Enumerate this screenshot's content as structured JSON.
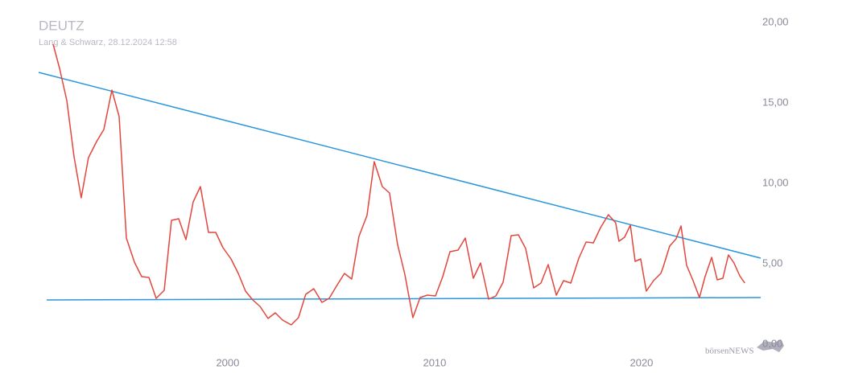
{
  "chart_data": {
    "type": "line",
    "title": "DEUTZ",
    "subtitle": "Lang & Schwarz, 28.12.2024 12:58",
    "watermark": "börsenNEWS",
    "x": [
      1991.56,
      1991.87,
      1992.22,
      1992.57,
      1992.92,
      1993.27,
      1993.66,
      1994.01,
      1994.4,
      1994.75,
      1995.1,
      1995.49,
      1995.84,
      1996.19,
      1996.54,
      1996.93,
      1997.28,
      1997.63,
      1997.98,
      1998.33,
      1998.68,
      1999.07,
      1999.42,
      1999.77,
      2000.16,
      2000.51,
      2000.86,
      2001.21,
      2001.56,
      2001.95,
      2002.3,
      2002.65,
      2003.07,
      2003.42,
      2003.77,
      2004.16,
      2004.55,
      2004.9,
      2005.25,
      2005.64,
      2005.99,
      2006.34,
      2006.73,
      2007.08,
      2007.47,
      2007.82,
      2008.21,
      2008.56,
      2008.95,
      2009.3,
      2009.65,
      2010.04,
      2010.39,
      2010.74,
      2011.13,
      2011.48,
      2011.87,
      2012.22,
      2012.61,
      2012.96,
      2013.31,
      2013.7,
      2014.05,
      2014.4,
      2014.79,
      2015.14,
      2015.49,
      2015.88,
      2016.23,
      2016.58,
      2016.97,
      2017.32,
      2017.67,
      2018.02,
      2018.4,
      2018.75,
      2018.91,
      2019.18,
      2019.46,
      2019.69,
      2019.96,
      2020.23,
      2020.58,
      2020.93,
      2021.05,
      2021.36,
      2021.67,
      2021.91,
      2022.18,
      2022.49,
      2022.8,
      2023.07,
      2023.39,
      2023.66,
      2023.93,
      2024.2,
      2024.47,
      2024.75,
      2024.99
    ],
    "series": [
      {
        "color": "#e2463c",
        "values": [
          18.65,
          17.15,
          15.15,
          11.65,
          9.1,
          11.6,
          12.6,
          13.35,
          15.8,
          14.15,
          6.6,
          5.1,
          4.2,
          4.15,
          2.85,
          3.35,
          7.7,
          7.8,
          6.5,
          8.85,
          9.8,
          6.95,
          6.95,
          6.0,
          5.3,
          4.4,
          3.3,
          2.75,
          2.35,
          1.6,
          1.95,
          1.5,
          1.2,
          1.65,
          3.1,
          3.45,
          2.6,
          2.85,
          3.6,
          4.4,
          4.05,
          6.7,
          8.0,
          11.35,
          9.8,
          9.4,
          6.2,
          4.35,
          1.65,
          2.9,
          3.05,
          3.0,
          4.2,
          5.75,
          5.85,
          6.6,
          4.1,
          5.05,
          2.8,
          3.0,
          3.85,
          6.75,
          6.8,
          5.95,
          3.5,
          3.8,
          4.95,
          3.05,
          3.95,
          3.8,
          5.35,
          6.35,
          6.3,
          7.25,
          8.05,
          7.55,
          6.4,
          6.65,
          7.4,
          5.15,
          5.3,
          3.3,
          3.95,
          4.4,
          4.8,
          6.1,
          6.55,
          7.35,
          4.9,
          3.95,
          2.9,
          4.2,
          5.4,
          4.0,
          4.1,
          5.55,
          5.05,
          4.25,
          3.8
        ]
      }
    ],
    "trendlines": [
      {
        "color": "#2a96dc",
        "x": [
          1990.86,
          2025.76
        ],
        "values": [
          16.9,
          5.35
        ]
      },
      {
        "color": "#2a96dc",
        "x": [
          1991.25,
          2025.76
        ],
        "values": [
          2.75,
          2.9
        ]
      }
    ],
    "xlim": [
      1990.86,
      2025.76
    ],
    "xticks": [
      2000,
      2010,
      2020
    ],
    "ylim": [
      0,
      20
    ],
    "yticks": [
      {
        "value": 0,
        "label": "0,00"
      },
      {
        "value": 5,
        "label": "5,00"
      },
      {
        "value": 10,
        "label": "10,00"
      },
      {
        "value": 15,
        "label": "15,00"
      },
      {
        "value": 20,
        "label": "20,00"
      }
    ],
    "grid": false
  }
}
